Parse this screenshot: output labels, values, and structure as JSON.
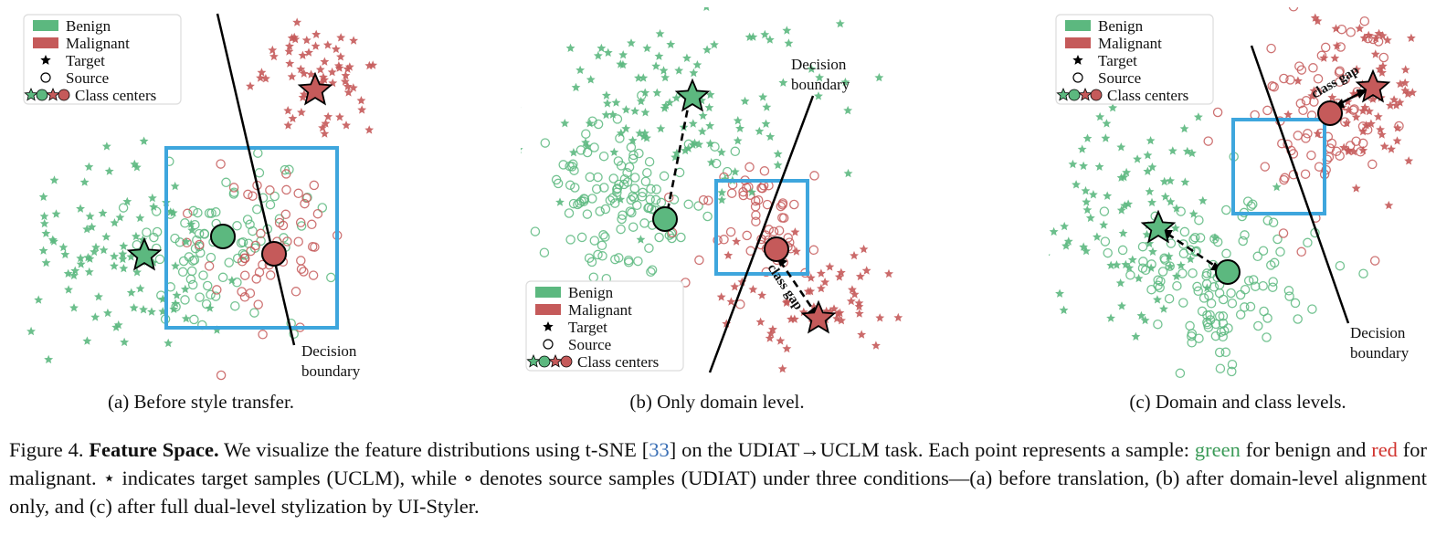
{
  "colors": {
    "benign": "#5cb87f",
    "malignant": "#c55a5a",
    "box": "#3ea6dd",
    "line": "#000000"
  },
  "legend": {
    "benign": "Benign",
    "malignant": "Malignant",
    "target": "Target",
    "source": "Source",
    "centers": "Class centers"
  },
  "panels": [
    {
      "id": "a",
      "subcaption": "(a) Before style transfer.",
      "boundary_label_1": "Decision",
      "boundary_label_2": "boundary",
      "gap_label": ""
    },
    {
      "id": "b",
      "subcaption": "(b) Only domain level.",
      "boundary_label_1": "Decision",
      "boundary_label_2": "boundary",
      "gap_label": "class gap"
    },
    {
      "id": "c",
      "subcaption": "(c) Domain and class levels.",
      "boundary_label_1": "Decision",
      "boundary_label_2": "boundary",
      "gap_label": "class gap"
    }
  ],
  "caption": {
    "fig_num": "Figure 4.",
    "title": "Feature Space.",
    "part1": "We visualize the feature distributions using t-SNE [",
    "ref": "33",
    "part2": "] on the UDIAT→UCLM task. Each point represents a sample:",
    "green_word": "green",
    "part3": "for benign and",
    "red_word": "red",
    "part4": "for malignant. ⋆ indicates target samples (UCLM), while ∘ denotes source samples (UDIAT) under three conditions—(a) before translation, (b) after domain-level alignment only, and (c) after full dual-level stylization by UI-Styler."
  }
}
